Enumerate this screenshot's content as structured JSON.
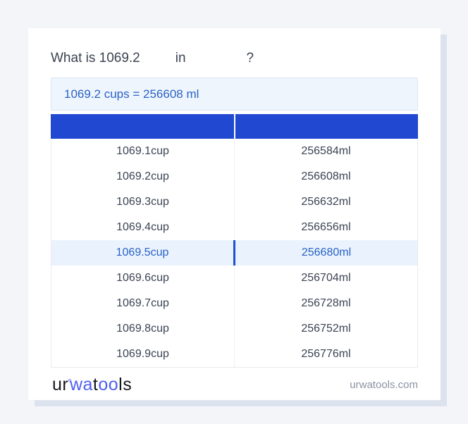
{
  "title": {
    "prefix": "What is 1069.2",
    "connector": "in",
    "question_mark": "?"
  },
  "result": {
    "text": "1069.2 cups = 256608 ml"
  },
  "table": {
    "columns": [
      "",
      ""
    ],
    "highlight_index": 4,
    "rows": [
      {
        "cup": "1069.1cup",
        "ml": "256584ml"
      },
      {
        "cup": "1069.2cup",
        "ml": "256608ml"
      },
      {
        "cup": "1069.3cup",
        "ml": "256632ml"
      },
      {
        "cup": "1069.4cup",
        "ml": "256656ml"
      },
      {
        "cup": "1069.5cup",
        "ml": "256680ml"
      },
      {
        "cup": "1069.6cup",
        "ml": "256704ml"
      },
      {
        "cup": "1069.7cup",
        "ml": "256728ml"
      },
      {
        "cup": "1069.8cup",
        "ml": "256752ml"
      },
      {
        "cup": "1069.9cup",
        "ml": "256776ml"
      }
    ]
  },
  "footer": {
    "logo": {
      "part1": "ur",
      "degree_mark": "°",
      "part2": "wa",
      "part3": "t",
      "part4": "oo",
      "part5": "ls"
    },
    "domain": "urwatools.com"
  },
  "colors": {
    "page_background": "#f3f5f9",
    "card_background": "#ffffff",
    "header_blue": "#2048d0",
    "result_box_background": "#eff5fd",
    "result_text_blue": "#2a63c5",
    "highlight_row_background": "#e9f2fd",
    "logo_blue": "#4e5ef2",
    "domain_gray": "#8b93a4"
  }
}
